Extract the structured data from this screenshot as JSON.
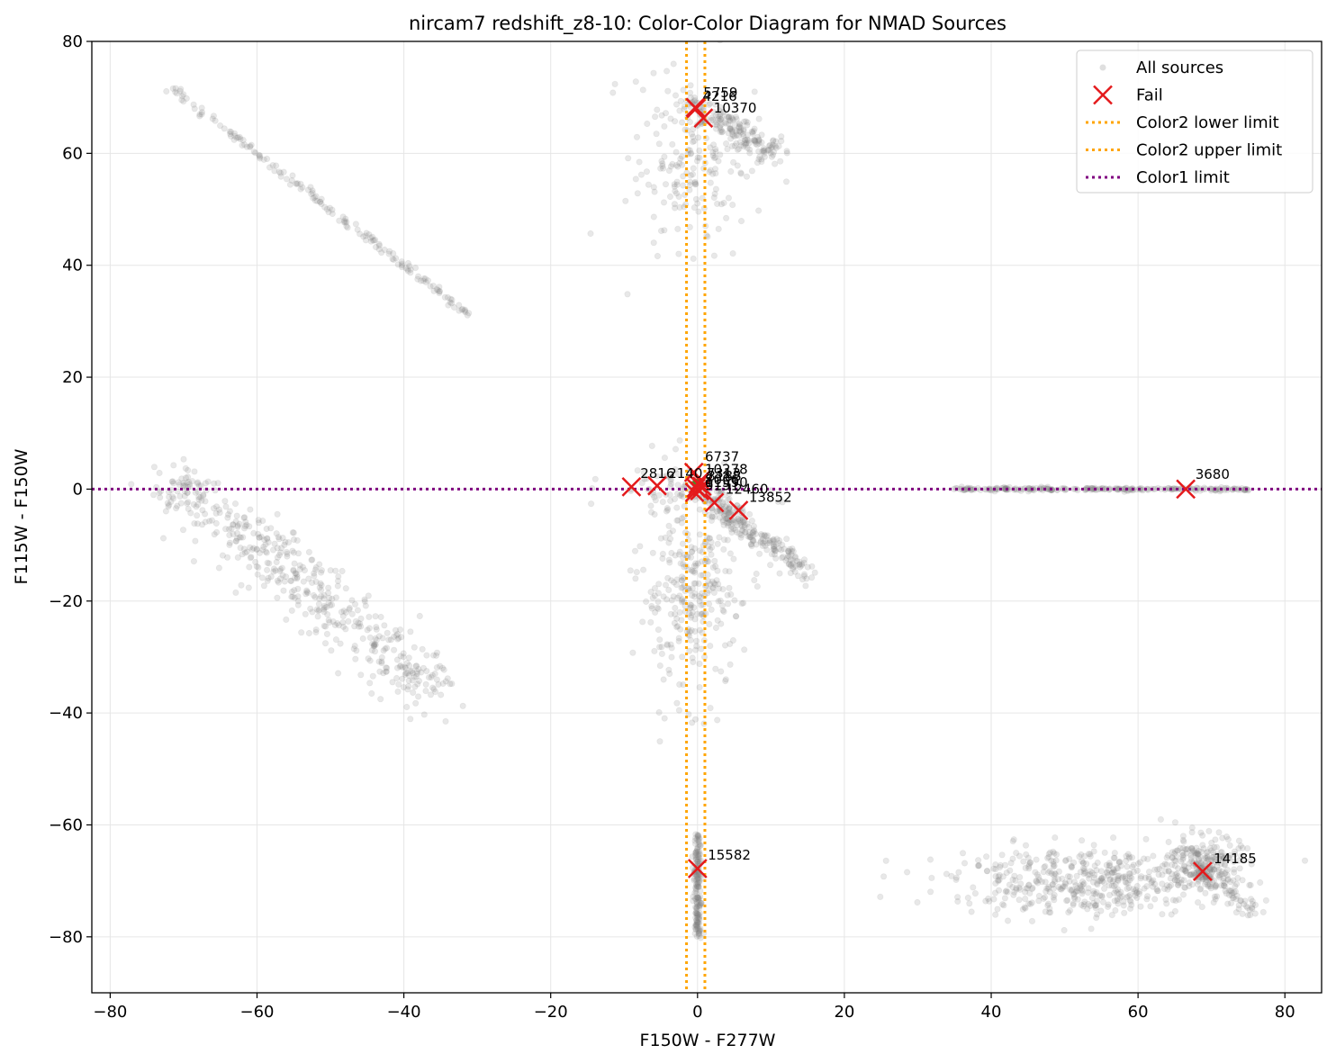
{
  "chart_data": {
    "type": "scatter",
    "title": "nircam7 redshift_z8-10: Color-Color Diagram for NMAD Sources",
    "xlabel": "F150W - F277W",
    "ylabel": "F115W - F150W",
    "xlim": [
      -82.5,
      85
    ],
    "ylim": [
      -90,
      80
    ],
    "xticks": [
      -80,
      -60,
      -40,
      -20,
      0,
      20,
      40,
      60,
      80
    ],
    "yticks": [
      -80,
      -60,
      -40,
      -20,
      0,
      20,
      40,
      60,
      80
    ],
    "grid": true,
    "legend_position": "top-right",
    "legend": [
      {
        "label": "All sources",
        "kind": "dot"
      },
      {
        "label": "Fail",
        "kind": "x"
      },
      {
        "label": "Color2 lower limit",
        "kind": "vline-orange"
      },
      {
        "label": "Color2 upper limit",
        "kind": "vline-orange"
      },
      {
        "label": "Color1 limit",
        "kind": "hline-purple"
      }
    ],
    "colors": {
      "all_sources": "#808080",
      "fail": "#e41a1c",
      "color2_limit": "#ffa500",
      "color1_limit": "#800080",
      "grid": "#e6e6e6"
    },
    "limits": {
      "color2_lower": -1.5,
      "color2_upper": 1.0,
      "color1": 0.0
    },
    "all_sources_clusters": [
      {
        "shape": "line",
        "x0": -72,
        "y0": 72,
        "x1": -31,
        "y1": 31,
        "n": 170,
        "jitter": 0.35
      },
      {
        "shape": "blob",
        "cx": -1,
        "cy": 58,
        "sx": 4,
        "sy": 8,
        "n": 180
      },
      {
        "shape": "line",
        "x0": -1,
        "y0": 69,
        "x1": 10,
        "y1": 60,
        "n": 180,
        "jitter": 1.2
      },
      {
        "shape": "blob",
        "cx": -70,
        "cy": 0,
        "sx": 2.5,
        "sy": 2.5,
        "n": 70
      },
      {
        "shape": "line",
        "x0": -67,
        "y0": -3,
        "x1": -36,
        "y1": -36,
        "n": 420,
        "jitter": 2.5
      },
      {
        "shape": "blob",
        "cx": -2,
        "cy": 0,
        "sx": 5,
        "sy": 2,
        "n": 60
      },
      {
        "shape": "blob",
        "cx": -1,
        "cy": -18,
        "sx": 3.5,
        "sy": 9,
        "n": 320
      },
      {
        "shape": "line",
        "x0": 1,
        "y0": -1,
        "x1": 15,
        "y1": -15,
        "n": 220,
        "jitter": 1.0
      },
      {
        "shape": "line",
        "x0": 35,
        "y0": 0,
        "x1": 75,
        "y1": 0,
        "n": 240,
        "jitter": 0.15
      },
      {
        "shape": "line",
        "x0": 0,
        "y0": -62,
        "x1": 0,
        "y1": -80,
        "n": 180,
        "jitter": 0.25
      },
      {
        "shape": "blob",
        "cx": 53,
        "cy": -70,
        "sx": 9,
        "sy": 3,
        "n": 480
      },
      {
        "shape": "blob",
        "cx": 69,
        "cy": -67,
        "sx": 2.5,
        "sy": 2.5,
        "n": 220
      },
      {
        "shape": "line",
        "x0": 68,
        "y0": -68,
        "x1": 76,
        "y1": -76,
        "n": 60,
        "jitter": 0.8
      }
    ],
    "fail_points": [
      {
        "id": "5759",
        "x": -0.3,
        "y": 68.2
      },
      {
        "id": "4216",
        "x": -0.2,
        "y": 68.0
      },
      {
        "id": "10370",
        "x": 0.8,
        "y": 66.3
      },
      {
        "id": "6737",
        "x": -0.5,
        "y": 3.0
      },
      {
        "id": "2816",
        "x": -9.0,
        "y": 0.4
      },
      {
        "id": "2140",
        "x": -5.5,
        "y": 0.6
      },
      {
        "id": "10278",
        "x": 0.4,
        "y": 1.5
      },
      {
        "id": "7313",
        "x": 0.1,
        "y": 0.9
      },
      {
        "id": "3188",
        "x": 0.6,
        "y": 0.5
      },
      {
        "id": "8006",
        "x": -0.2,
        "y": 0.2
      },
      {
        "id": "11590",
        "x": 0.3,
        "y": -0.3
      },
      {
        "id": "9151",
        "x": -0.4,
        "y": -0.6
      },
      {
        "id": "12460",
        "x": 2.3,
        "y": -2.4
      },
      {
        "id": "13852",
        "x": 5.6,
        "y": -3.8
      },
      {
        "id": "3680",
        "x": 66.5,
        "y": 0.0
      },
      {
        "id": "15582",
        "x": 0.0,
        "y": -67.8
      },
      {
        "id": "14185",
        "x": 68.8,
        "y": -68.3
      }
    ],
    "annotations": [
      {
        "text": "5759",
        "x": 0.8,
        "y": 70.0
      },
      {
        "text": "4216",
        "x": 0.7,
        "y": 69.4
      },
      {
        "text": "10370",
        "x": 2.2,
        "y": 67.3
      },
      {
        "text": "6737",
        "x": 1.0,
        "y": 5.0
      },
      {
        "text": "2816",
        "x": -7.8,
        "y": 2.0
      },
      {
        "text": "2140",
        "x": -4.0,
        "y": 2.0
      },
      {
        "text": "10278",
        "x": 1.0,
        "y": 2.7
      },
      {
        "text": "7313",
        "x": 1.2,
        "y": 2.0
      },
      {
        "text": "3188",
        "x": 1.3,
        "y": 1.5
      },
      {
        "text": "8006",
        "x": 1.0,
        "y": 0.9
      },
      {
        "text": "11590",
        "x": 1.0,
        "y": 0.4
      },
      {
        "text": "9151",
        "x": 1.0,
        "y": -0.2
      },
      {
        "text": "12460",
        "x": 3.8,
        "y": -0.8
      },
      {
        "text": "13852",
        "x": 7.0,
        "y": -2.3
      },
      {
        "text": "3680",
        "x": 67.8,
        "y": 1.8
      },
      {
        "text": "15582",
        "x": 1.4,
        "y": -66.2
      },
      {
        "text": "14185",
        "x": 70.3,
        "y": -66.8
      }
    ]
  }
}
